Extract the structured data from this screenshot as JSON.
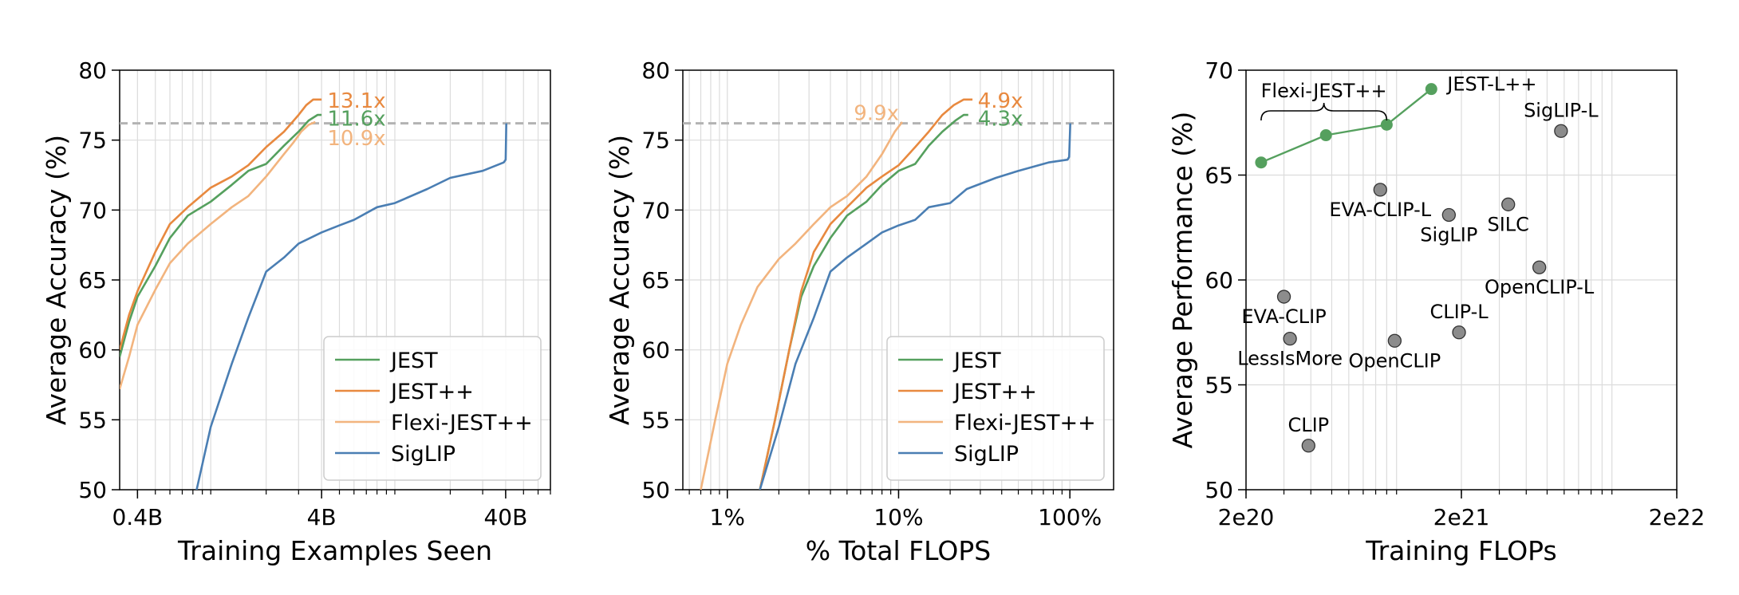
{
  "colors": {
    "jest": "#55a05e",
    "jest_pp": "#e8893f",
    "flexi": "#f2b47e",
    "siglip": "#4a7eb3",
    "baseline": "#b3b3b3",
    "point_gray": "#8c8c8c",
    "grid": "#dcdcdc"
  },
  "chart_data": [
    {
      "type": "line",
      "xscale": "log",
      "xlabel": "Training Examples Seen",
      "ylabel": "Average Accuracy (%)",
      "xlim": [
        0.32,
        70
      ],
      "ylim": [
        50,
        80
      ],
      "xticks": [
        {
          "v": 0.4,
          "label": "0.4B"
        },
        {
          "v": 4,
          "label": "4B"
        },
        {
          "v": 40,
          "label": "40B"
        }
      ],
      "yticks": [
        50,
        55,
        60,
        65,
        70,
        75,
        80
      ],
      "baseline_y": 76.2,
      "legend": {
        "position": "lower-right",
        "entries": [
          "JEST",
          "JEST++",
          "Flexi-JEST++",
          "SigLIP"
        ]
      },
      "series": [
        {
          "name": "JEST",
          "color_key": "jest",
          "x": [
            0.32,
            0.36,
            0.4,
            0.5,
            0.6,
            0.75,
            1.0,
            1.3,
            1.6,
            2.0,
            2.5,
            3.0,
            3.4,
            3.8,
            4.0
          ],
          "y": [
            59.5,
            62,
            63.8,
            66,
            68,
            69.6,
            70.6,
            71.8,
            72.8,
            73.3,
            74.6,
            75.6,
            76.4,
            76.8,
            76.8
          ]
        },
        {
          "name": "JEST++",
          "color_key": "jest_pp",
          "x": [
            0.32,
            0.36,
            0.4,
            0.5,
            0.6,
            0.75,
            1.0,
            1.3,
            1.6,
            2.0,
            2.5,
            3.0,
            3.3,
            3.6,
            4.0
          ],
          "y": [
            60,
            62.5,
            64.2,
            67,
            69,
            70.2,
            71.6,
            72.4,
            73.2,
            74.5,
            75.6,
            76.8,
            77.5,
            77.9,
            77.9
          ]
        },
        {
          "name": "Flexi-JEST++",
          "color_key": "flexi",
          "x": [
            0.32,
            0.36,
            0.4,
            0.5,
            0.6,
            0.75,
            1.0,
            1.3,
            1.6,
            2.0,
            2.5,
            2.8,
            3.1,
            3.4,
            3.7
          ],
          "y": [
            57.2,
            59.5,
            61.8,
            64.3,
            66.2,
            67.6,
            69,
            70.2,
            71,
            72.4,
            74,
            74.8,
            75.6,
            76.1,
            76.3
          ]
        },
        {
          "name": "SigLIP",
          "color_key": "siglip",
          "x": [
            0.8,
            1.0,
            1.3,
            1.6,
            2.0,
            2.5,
            3.0,
            4.0,
            5.0,
            6.0,
            8.0,
            10.0,
            15.0,
            20.0,
            30.0,
            39.0,
            40.0,
            40.3
          ],
          "y": [
            48.8,
            54.5,
            59,
            62.3,
            65.6,
            66.6,
            67.6,
            68.4,
            68.9,
            69.3,
            70.2,
            70.5,
            71.5,
            72.3,
            72.8,
            73.4,
            73.6,
            76.2
          ]
        }
      ],
      "annotations": [
        {
          "text": "13.1x",
          "x": 4.3,
          "y": 77.9,
          "color_key": "jest_pp",
          "anchor": "start"
        },
        {
          "text": "11.6x",
          "x": 4.3,
          "y": 76.6,
          "color_key": "jest",
          "anchor": "start"
        },
        {
          "text": "10.9x",
          "x": 4.3,
          "y": 75.2,
          "color_key": "flexi",
          "anchor": "start"
        }
      ]
    },
    {
      "type": "line",
      "xscale": "log",
      "xlabel": "% Total FLOPS",
      "ylabel": "Average Accuracy (%)",
      "xlim": [
        0.55,
        180
      ],
      "ylim": [
        50,
        80
      ],
      "xticks": [
        {
          "v": 1,
          "label": "1%"
        },
        {
          "v": 10,
          "label": "10%"
        },
        {
          "v": 100,
          "label": "100%"
        }
      ],
      "yticks": [
        50,
        55,
        60,
        65,
        70,
        75,
        80
      ],
      "baseline_y": 76.2,
      "legend": {
        "position": "lower-right",
        "entries": [
          "JEST",
          "JEST++",
          "Flexi-JEST++",
          "SigLIP"
        ]
      },
      "series": [
        {
          "name": "JEST",
          "color_key": "jest",
          "x": [
            1.55,
            1.9,
            2.3,
            2.7,
            3.2,
            4.0,
            5.0,
            6.5,
            8.0,
            10.0,
            12.5,
            15.0,
            18.0,
            21.5,
            24.0,
            25.5
          ],
          "y": [
            50,
            55,
            60,
            63.8,
            66,
            68,
            69.6,
            70.6,
            71.8,
            72.8,
            73.3,
            74.6,
            75.6,
            76.4,
            76.8,
            76.8
          ]
        },
        {
          "name": "JEST++",
          "color_key": "jest_pp",
          "x": [
            1.55,
            1.9,
            2.3,
            2.7,
            3.2,
            4.0,
            5.0,
            6.5,
            8.0,
            10.0,
            12.5,
            15.0,
            18.0,
            21.0,
            24.0,
            27.0
          ],
          "y": [
            50,
            55,
            60,
            64.2,
            67,
            69,
            70.2,
            71.6,
            72.4,
            73.2,
            74.5,
            75.6,
            76.8,
            77.5,
            77.9,
            77.9
          ]
        },
        {
          "name": "Flexi-JEST++",
          "color_key": "flexi",
          "x": [
            0.7,
            0.85,
            1.0,
            1.2,
            1.5,
            2.0,
            2.5,
            3.2,
            4.0,
            5.0,
            6.5,
            8.0,
            9.5,
            10.5
          ],
          "y": [
            50,
            55,
            59,
            61.8,
            64.5,
            66.5,
            67.6,
            69,
            70.2,
            71,
            72.4,
            74,
            75.6,
            76.3
          ]
        },
        {
          "name": "SigLIP",
          "color_key": "siglip",
          "x": [
            1.55,
            2.0,
            2.5,
            3.2,
            4.0,
            5.0,
            6.5,
            8.0,
            10.0,
            12.5,
            15.0,
            20.0,
            25.0,
            37.0,
            50.0,
            75.0,
            97.0,
            99.0,
            100.5
          ],
          "y": [
            50,
            54.5,
            59,
            62.3,
            65.6,
            66.6,
            67.6,
            68.4,
            68.9,
            69.3,
            70.2,
            70.5,
            71.5,
            72.3,
            72.8,
            73.4,
            73.6,
            73.8,
            76.2
          ]
        }
      ],
      "annotations": [
        {
          "text": "9.9x",
          "x": 10.5,
          "y": 77.0,
          "color_key": "flexi",
          "anchor": "end"
        },
        {
          "text": "4.9x",
          "x": 29.0,
          "y": 77.9,
          "color_key": "jest_pp",
          "anchor": "start"
        },
        {
          "text": "4.3x",
          "x": 29.0,
          "y": 76.6,
          "color_key": "jest",
          "anchor": "start"
        }
      ]
    },
    {
      "type": "scatter",
      "xscale": "log",
      "xlabel": "Training FLOPs",
      "ylabel": "Average Performance (%)",
      "xlim": [
        2e+20,
        2e+22
      ],
      "ylim": [
        50,
        70
      ],
      "xticks": [
        {
          "v": 2e+20,
          "label": "2e20"
        },
        {
          "v": 2e+21,
          "label": "2e21"
        },
        {
          "v": 2e+22,
          "label": "2e22"
        }
      ],
      "yticks": [
        50,
        55,
        60,
        65,
        70
      ],
      "jest_line": {
        "color_key": "jest",
        "points": [
          {
            "x": 2.35e+20,
            "y": 65.6
          },
          {
            "x": 4.7e+20,
            "y": 66.9
          },
          {
            "x": 9e+20,
            "y": 67.4
          },
          {
            "x": 1.45e+21,
            "y": 69.1,
            "label": "JEST-L++",
            "label_pos": "right"
          }
        ],
        "brace_label": "Flexi-JEST++"
      },
      "baselines": [
        {
          "label": "SigLIP-L",
          "x": 5.8e+21,
          "y": 67.1,
          "label_pos": "above"
        },
        {
          "label": "EVA-CLIP-L",
          "x": 8.4e+20,
          "y": 64.3,
          "label_pos": "below"
        },
        {
          "label": "SigLIP",
          "x": 1.75e+21,
          "y": 63.1,
          "label_pos": "below"
        },
        {
          "label": "SILC",
          "x": 3.3e+21,
          "y": 63.6,
          "label_pos": "below"
        },
        {
          "label": "OpenCLIP-L",
          "x": 4.6e+21,
          "y": 60.6,
          "label_pos": "below"
        },
        {
          "label": "EVA-CLIP",
          "x": 3e+20,
          "y": 59.2,
          "label_pos": "below"
        },
        {
          "label": "LessIsMore",
          "x": 3.2e+20,
          "y": 57.2,
          "label_pos": "below"
        },
        {
          "label": "CLIP-L",
          "x": 1.95e+21,
          "y": 57.5,
          "label_pos": "above"
        },
        {
          "label": "OpenCLIP",
          "x": 9.8e+20,
          "y": 57.1,
          "label_pos": "below"
        },
        {
          "label": "CLIP",
          "x": 3.9e+20,
          "y": 52.1,
          "label_pos": "above"
        }
      ]
    }
  ]
}
